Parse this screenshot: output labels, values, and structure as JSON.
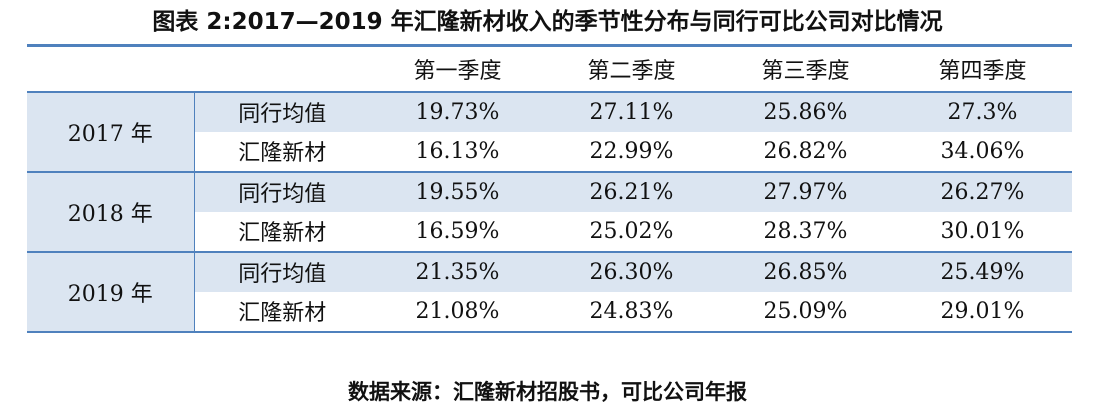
{
  "title": "图表 2:2017—2019 年汇隆新材收入的季节性分布与同行可比公司对比情况",
  "table": {
    "headers": [
      "",
      "",
      "第一季度",
      "第二季度",
      "第三季度",
      "第四季度"
    ],
    "groups": [
      {
        "year": "2017 年",
        "rows": [
          {
            "label": "同行均值",
            "values": [
              "19.73%",
              "27.11%",
              "25.86%",
              "27.3%"
            ]
          },
          {
            "label": "汇隆新材",
            "values": [
              "16.13%",
              "22.99%",
              "26.82%",
              "34.06%"
            ]
          }
        ]
      },
      {
        "year": "2018 年",
        "rows": [
          {
            "label": "同行均值",
            "values": [
              "19.55%",
              "26.21%",
              "27.97%",
              "26.27%"
            ]
          },
          {
            "label": "汇隆新材",
            "values": [
              "16.59%",
              "25.02%",
              "28.37%",
              "30.01%"
            ]
          }
        ]
      },
      {
        "year": "2019 年",
        "rows": [
          {
            "label": "同行均值",
            "values": [
              "21.35%",
              "26.30%",
              "26.85%",
              "25.49%"
            ]
          },
          {
            "label": "汇隆新材",
            "values": [
              "21.08%",
              "24.83%",
              "25.09%",
              "29.01%"
            ]
          }
        ]
      }
    ]
  },
  "source": "数据来源：汇隆新材招股书，可比公司年报",
  "colors": {
    "border": "#4f81bd",
    "band": "#dbe5f1"
  }
}
